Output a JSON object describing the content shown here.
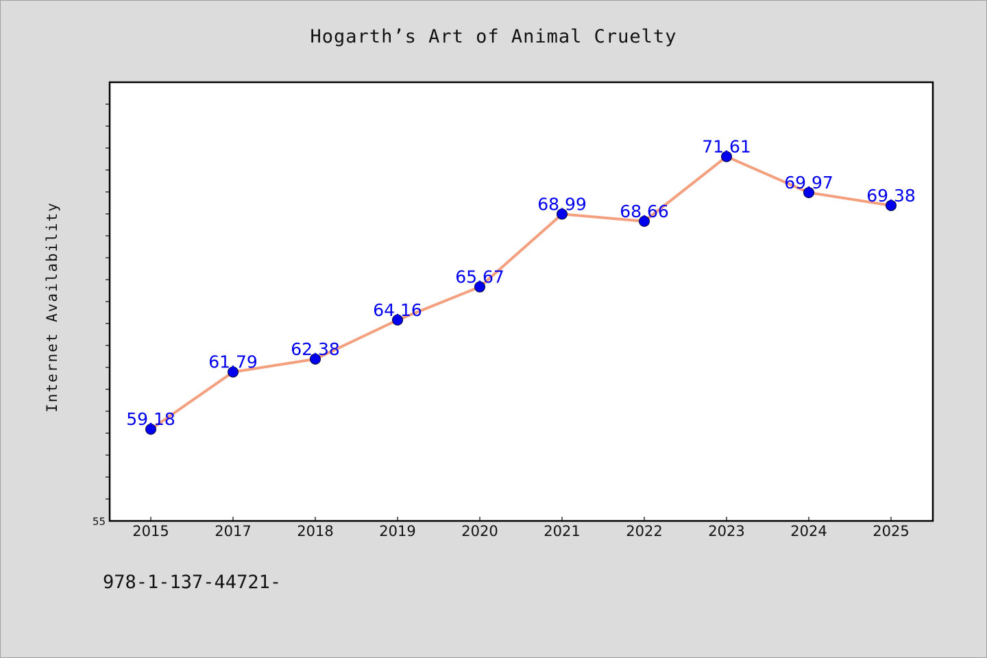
{
  "chart_data": {
    "type": "line",
    "title": "Hogarth’s Art of Animal Cruelty",
    "ylabel": "Internet Availability",
    "xlabel": "",
    "categories": [
      "2015",
      "2017",
      "2018",
      "2019",
      "2020",
      "2021",
      "2022",
      "2023",
      "2024",
      "2025"
    ],
    "series": [
      {
        "values": [
          59.18,
          61.79,
          62.38,
          64.16,
          65.67,
          68.99,
          68.66,
          71.61,
          69.97,
          69.38
        ],
        "line_color": "#f4a07e",
        "marker_color": "#0000ee",
        "label_color": "#0000ee"
      }
    ],
    "data_labels": [
      "59.18",
      "61.79",
      "62.38",
      "64.16",
      "65.67",
      "68.99",
      "68.66",
      "71.61",
      "69.97",
      "69.38"
    ],
    "ylim": [
      55,
      75
    ],
    "y_tick_labels": [
      "55"
    ],
    "grid": false,
    "legend": "none"
  },
  "footer": {
    "code": "978-1-137-44721-"
  },
  "colors": {
    "background": "#dcdcdc",
    "plot_background": "#ffffff",
    "axis": "#000000"
  }
}
